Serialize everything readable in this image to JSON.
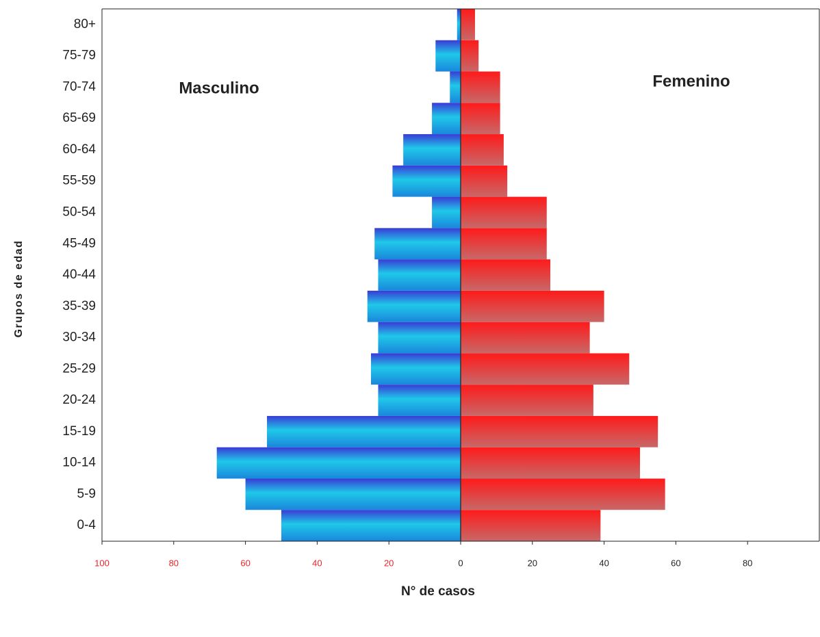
{
  "chart_data": {
    "type": "pyramid",
    "xlabel": "N° de casos",
    "ylabel": "Grupos de edad",
    "annotations": [
      "Masculino",
      "Femenino"
    ],
    "categories": [
      "0-4",
      "5-9",
      "10-14",
      "15-19",
      "20-24",
      "25-29",
      "30-34",
      "35-39",
      "40-44",
      "45-49",
      "50-54",
      "55-59",
      "60-64",
      "65-69",
      "70-74",
      "75-79",
      "80+"
    ],
    "series": [
      {
        "name": "Masculino",
        "color": "#1fc8e8",
        "values": [
          -50,
          -60,
          -68,
          -54,
          -23,
          -25,
          -23,
          -26,
          -23,
          -24,
          -8,
          -19,
          -16,
          -8,
          -3,
          -7,
          -1
        ]
      },
      {
        "name": "Femenino",
        "color": "#ff1a1a",
        "values": [
          39,
          57,
          50,
          55,
          37,
          47,
          36,
          40,
          25,
          24,
          24,
          13,
          12,
          11,
          11,
          5,
          4
        ]
      }
    ],
    "xlim": [
      -100,
      100
    ],
    "xticks": [
      {
        "value": -100,
        "label": "100"
      },
      {
        "value": -80,
        "label": "80"
      },
      {
        "value": -60,
        "label": "60"
      },
      {
        "value": -40,
        "label": "40"
      },
      {
        "value": -20,
        "label": "20"
      },
      0,
      20,
      40,
      60,
      80
    ],
    "negative_tick_color": "#e8242a"
  }
}
